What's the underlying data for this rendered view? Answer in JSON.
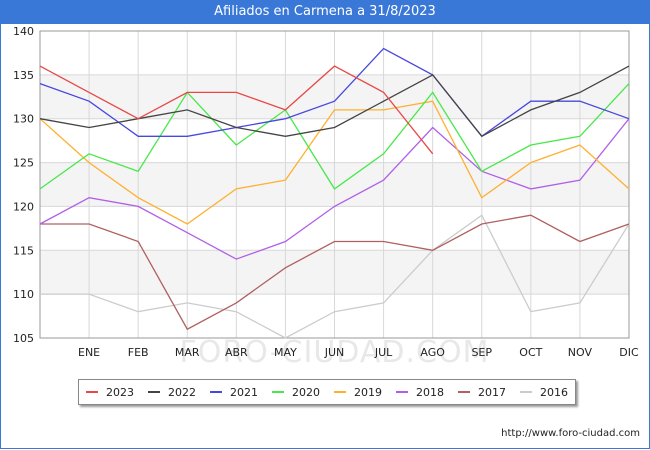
{
  "title": "Afiliados en Carmena a 31/8/2023",
  "source": "http://www.foro-ciudad.com",
  "watermark": "FORO-CIUDAD.COM",
  "chart_data": {
    "type": "line",
    "title": "Afiliados en Carmena a 31/8/2023",
    "categories": [
      "",
      "ENE",
      "FEB",
      "MAR",
      "ABR",
      "MAY",
      "JUN",
      "JUL",
      "AGO",
      "SEP",
      "OCT",
      "NOV",
      "DIC"
    ],
    "ylim": [
      105,
      140
    ],
    "yticks": [
      105,
      110,
      115,
      120,
      125,
      130,
      135,
      140
    ],
    "grid": true,
    "legend_position": "bottom",
    "series": [
      {
        "name": "2023",
        "color": "#e84848",
        "values": [
          136,
          133,
          130,
          133,
          133,
          131,
          136,
          133,
          126,
          null,
          null,
          null,
          null
        ]
      },
      {
        "name": "2022",
        "color": "#444444",
        "values": [
          130,
          129,
          130,
          131,
          129,
          128,
          129,
          132,
          135,
          128,
          131,
          133,
          136
        ]
      },
      {
        "name": "2021",
        "color": "#4848e0",
        "values": [
          134,
          132,
          128,
          128,
          129,
          130,
          132,
          138,
          135,
          128,
          132,
          132,
          130
        ]
      },
      {
        "name": "2020",
        "color": "#48e848",
        "values": [
          122,
          126,
          124,
          133,
          127,
          131,
          122,
          126,
          133,
          124,
          127,
          128,
          134
        ]
      },
      {
        "name": "2019",
        "color": "#ffb030",
        "values": [
          130,
          125,
          121,
          118,
          122,
          123,
          131,
          131,
          132,
          121,
          125,
          127,
          122
        ]
      },
      {
        "name": "2018",
        "color": "#b060e8",
        "values": [
          118,
          121,
          120,
          117,
          114,
          116,
          120,
          123,
          129,
          124,
          122,
          123,
          130
        ]
      },
      {
        "name": "2017",
        "color": "#b06060",
        "values": [
          118,
          118,
          116,
          106,
          109,
          113,
          116,
          116,
          115,
          118,
          119,
          116,
          118
        ]
      },
      {
        "name": "2016",
        "color": "#cccccc",
        "values": [
          110,
          110,
          108,
          109,
          108,
          105,
          108,
          109,
          115,
          119,
          108,
          109,
          118
        ]
      }
    ]
  }
}
